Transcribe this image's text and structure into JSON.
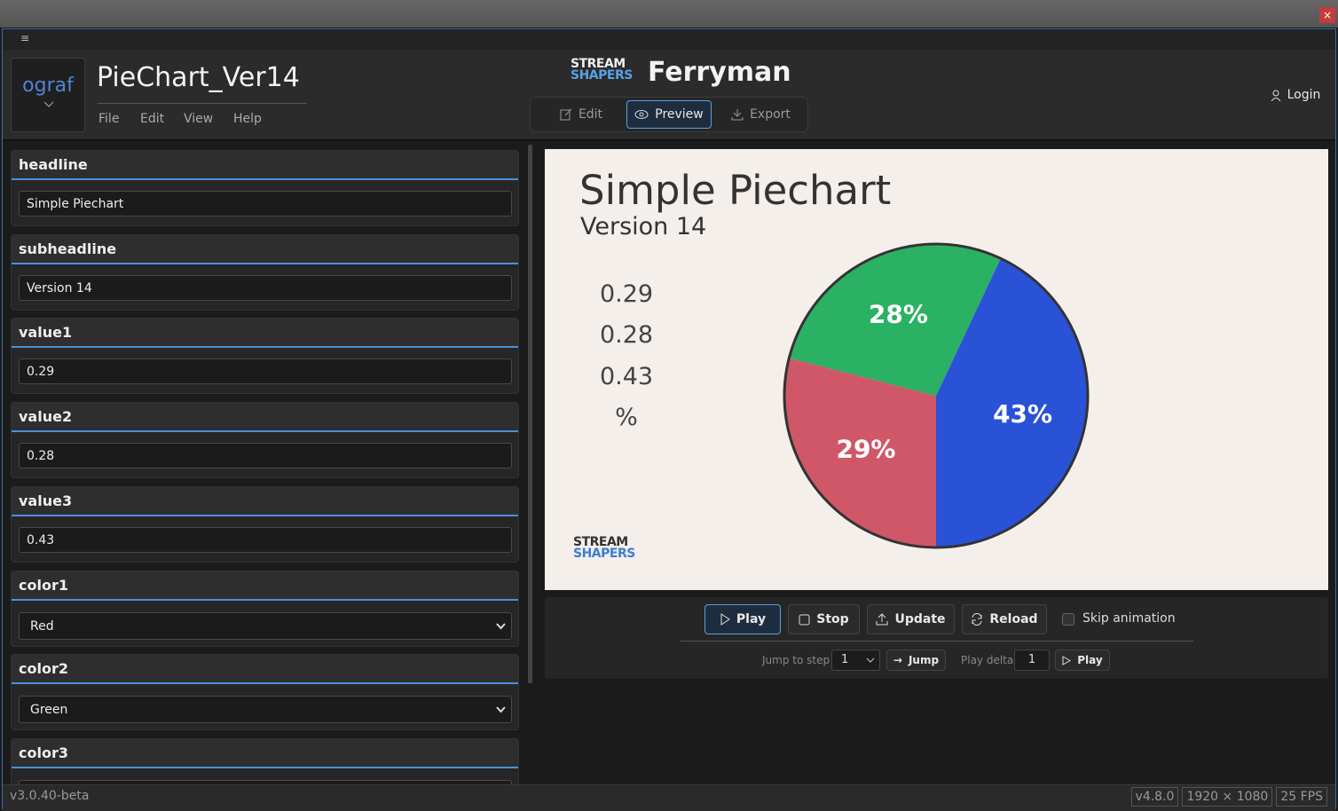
{
  "window": {
    "close": "×",
    "menu_icon": "≡"
  },
  "header": {
    "logo": "ograf",
    "title": "PieChart_Ver14",
    "menu": [
      "File",
      "Edit",
      "View",
      "Help"
    ],
    "brand": [
      "STREAM",
      "SHAPERS"
    ],
    "product": "Ferryman",
    "tabs": [
      "Edit",
      "Preview",
      "Export"
    ],
    "login": "Login"
  },
  "fields": [
    {
      "label": "headline",
      "value": "Simple Piechart"
    },
    {
      "label": "subheadline",
      "value": "Version 14"
    },
    {
      "label": "value1",
      "value": "0.29"
    },
    {
      "label": "value2",
      "value": "0.28"
    },
    {
      "label": "value3",
      "value": "0.43"
    },
    {
      "label": "color1",
      "value": "Red",
      "select": true
    },
    {
      "label": "color2",
      "value": "Green",
      "select": true
    },
    {
      "label": "color3",
      "select": true
    }
  ],
  "preview": {
    "headline": "Simple Piechart",
    "subheadline": "Version 14",
    "values_text": [
      "0.29",
      "0.28",
      "0.43",
      "%"
    ],
    "pie": {
      "values": [
        29,
        28,
        43
      ],
      "value_labels": [
        "29%",
        "28%",
        "43%"
      ],
      "colors": [
        "#d05768",
        "#2ab163",
        "#2a52d6"
      ]
    },
    "brand": [
      "STREAM",
      "SHAPERS"
    ]
  },
  "controls": {
    "buttons": [
      "Play",
      "Stop",
      "Update",
      "Reload"
    ],
    "skip": "Skip animation",
    "jump_label": "Jump to step",
    "jump_step": "1",
    "jump": "Jump",
    "delta_label": "Play delta",
    "delta": "1",
    "play": "Play"
  },
  "status": {
    "version": "v3.0.40-beta",
    "badges": [
      "v4.8.0",
      "1920 × 1080",
      "25 FPS"
    ]
  }
}
